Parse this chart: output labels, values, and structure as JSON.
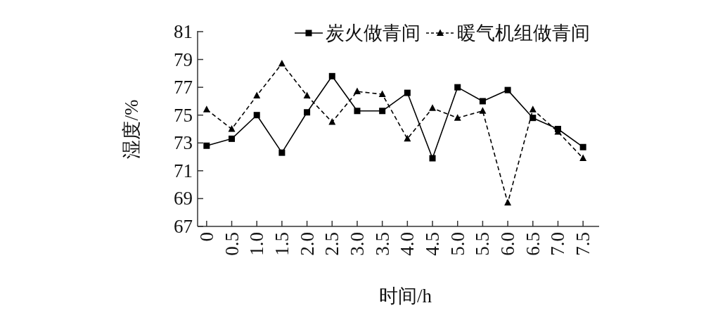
{
  "chart_data": {
    "type": "line",
    "xlabel": "时间/h",
    "ylabel": "湿度/%",
    "categories": [
      "0",
      "0.5",
      "1.0",
      "1.5",
      "2.0",
      "2.5",
      "3.0",
      "3.5",
      "4.0",
      "4.5",
      "5.0",
      "5.5",
      "6.0",
      "6.5",
      "7.0",
      "7.5"
    ],
    "series": [
      {
        "name": "炭火做青间",
        "color": "#000000",
        "marker": "square",
        "line_style": "solid",
        "values": [
          72.8,
          73.3,
          75.0,
          72.3,
          75.2,
          77.8,
          75.3,
          75.3,
          76.6,
          71.9,
          77.0,
          76.0,
          76.8,
          74.8,
          74.0,
          72.7
        ]
      },
      {
        "name": "暖气机组做青间",
        "color": "#000000",
        "marker": "triangle",
        "line_style": "dashed",
        "values": [
          75.4,
          74.0,
          76.4,
          78.7,
          76.4,
          74.5,
          76.7,
          76.5,
          73.3,
          75.5,
          74.8,
          75.3,
          68.7,
          75.4,
          73.8,
          71.9
        ]
      }
    ],
    "ylim": [
      67,
      81
    ],
    "yticks": [
      67,
      69,
      71,
      73,
      75,
      77,
      79,
      81
    ],
    "grid": false,
    "legend": "top right"
  }
}
